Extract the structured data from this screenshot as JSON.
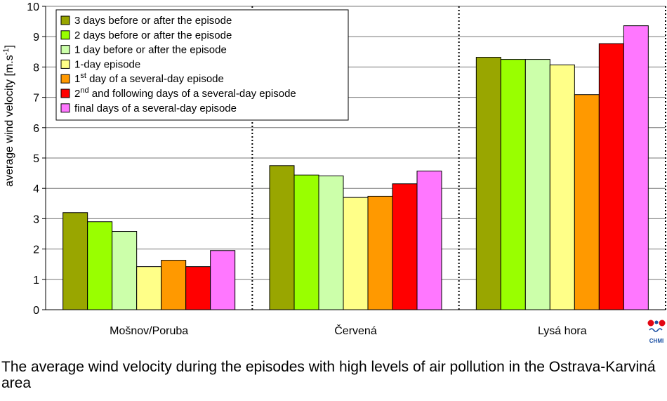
{
  "caption": "The average wind velocity during the episodes with high levels of air pollution in the Ostrava-Karviná area",
  "logo_text": "CHMI",
  "chart_data": {
    "type": "bar",
    "ylabel_main": "average wind velocity [m.s",
    "ylabel_sup": "-1",
    "ylabel_end": "]",
    "ylim": [
      0,
      10
    ],
    "yticks": [
      0,
      1,
      2,
      3,
      4,
      5,
      6,
      7,
      8,
      9,
      10
    ],
    "grid": true,
    "legend_placement": "top-left",
    "categories": [
      "Mošnov/Poruba",
      "Červená",
      "Lysá hora"
    ],
    "series": [
      {
        "name": "3 days before or after the episode",
        "color": "#99a600",
        "values": [
          3.2,
          4.75,
          8.32
        ]
      },
      {
        "name": "2 days before or after the episode",
        "color": "#99ff00",
        "values": [
          2.9,
          4.44,
          8.25
        ]
      },
      {
        "name": "1 day before or after the episode",
        "color": "#ccffaa",
        "values": [
          2.58,
          4.41,
          8.25
        ]
      },
      {
        "name": "1-day episode",
        "color": "#ffff88",
        "values": [
          1.42,
          3.7,
          8.07
        ]
      },
      {
        "name_parts": [
          "1",
          "st",
          " day of a several-day episode"
        ],
        "color": "#ff9900",
        "values": [
          1.63,
          3.74,
          7.09
        ]
      },
      {
        "name_parts": [
          "2",
          "nd",
          " and following days of a several-day episode"
        ],
        "color": "#ff0000",
        "values": [
          1.42,
          4.15,
          8.77
        ]
      },
      {
        "name": "final days of a several-day episode",
        "color": "#ff77ff",
        "values": [
          1.95,
          4.57,
          9.36
        ]
      }
    ]
  }
}
